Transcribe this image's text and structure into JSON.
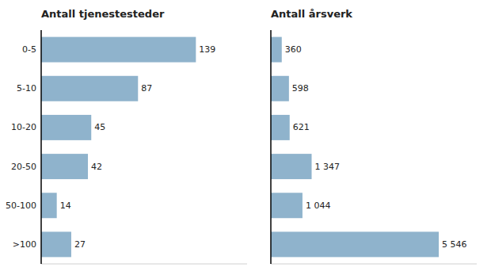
{
  "chart_data": [
    {
      "type": "bar",
      "orientation": "horizontal",
      "title": "Antall tjenestesteder",
      "categories": [
        "0-5",
        "5-10",
        "10-20",
        "20-50",
        "50-100",
        ">100"
      ],
      "values": [
        139,
        87,
        45,
        42,
        14,
        27
      ],
      "color": "#8fb3cc",
      "xlim": [
        0,
        185
      ],
      "data_labels": true,
      "tick_labels": "y",
      "grid": false
    },
    {
      "type": "bar",
      "orientation": "horizontal",
      "title": "Antall årsverk",
      "categories": [
        "0-5",
        "5-10",
        "10-20",
        "20-50",
        "50-100",
        ">100"
      ],
      "values": [
        360,
        598,
        621,
        1347,
        1044,
        5546
      ],
      "value_labels": [
        "360",
        "598",
        "621",
        "1 347",
        "1 044",
        "5 546"
      ],
      "color": "#8fb3cc",
      "xlim": [
        0,
        6800
      ],
      "data_labels": true,
      "tick_labels": false,
      "grid": false
    }
  ]
}
